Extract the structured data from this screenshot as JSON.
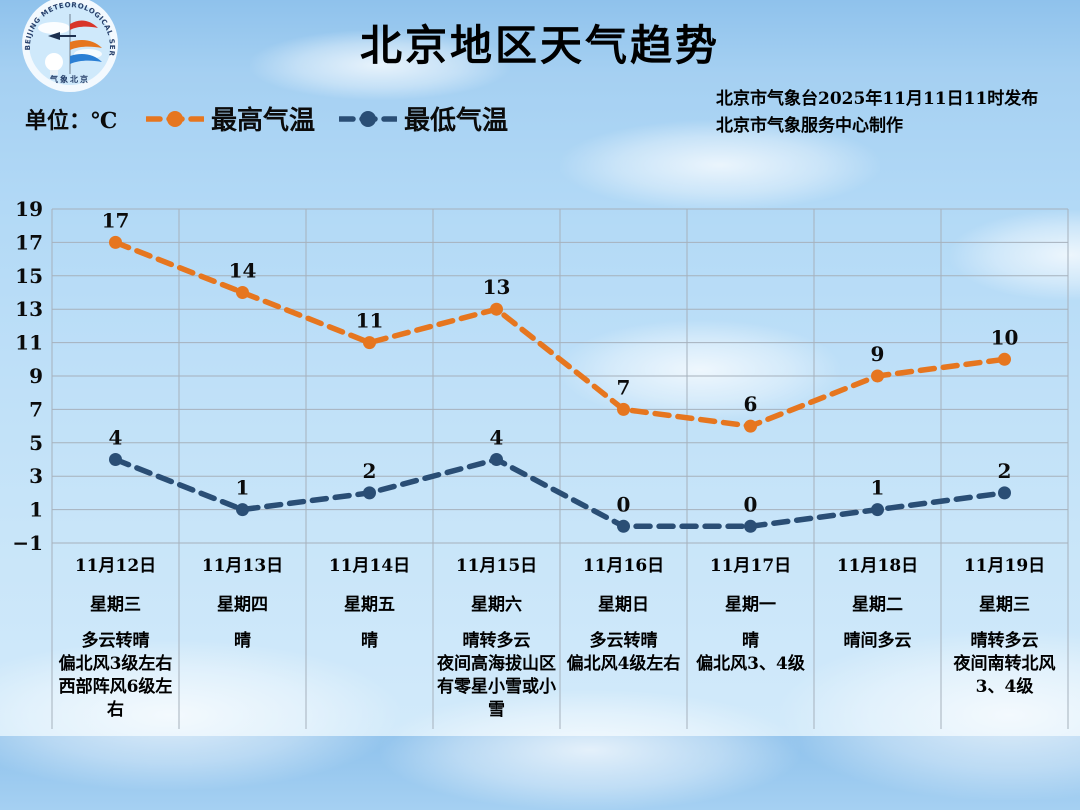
{
  "page": {
    "title": "北京地区天气趋势",
    "unit_label": "单位：℃",
    "source_line1": "北京市气象台2025年11月11日11时发布",
    "source_line2": "北京市气象服务中心制作",
    "logo_text_top": "BEIJING METEOROLOGICAL SERVICE",
    "logo_text_bottom": "气象北京"
  },
  "legend": {
    "max_label": "最高气温",
    "min_label": "最低气温",
    "max_color": "#E6761F",
    "min_color": "#2A4E75"
  },
  "chart_data": {
    "type": "line",
    "line_style": "dashed",
    "grid": true,
    "legend_position": "top-left",
    "ylim": [
      -1,
      19
    ],
    "yticks": [
      19,
      17,
      15,
      13,
      11,
      9,
      7,
      5,
      3,
      1,
      -1
    ],
    "ytick_labels": [
      "19",
      "17",
      "15",
      "13",
      "11",
      "9",
      "7",
      "5",
      "3",
      "1",
      "−1"
    ],
    "categories": [
      "11月12日",
      "11月13日",
      "11月14日",
      "11月15日",
      "11月16日",
      "11月17日",
      "11月18日",
      "11月19日"
    ],
    "weekdays": [
      "星期三",
      "星期四",
      "星期五",
      "星期六",
      "星期日",
      "星期一",
      "星期二",
      "星期三"
    ],
    "weather": [
      [
        "多云转晴",
        "偏北风3级左右 西部阵风6级左右"
      ],
      [
        "晴"
      ],
      [
        "晴"
      ],
      [
        "晴转多云",
        "夜间高海拔山区有零星小雪或小雪"
      ],
      [
        "多云转晴",
        "偏北风4级左右"
      ],
      [
        "晴",
        "偏北风3、4级"
      ],
      [
        "晴间多云"
      ],
      [
        "晴转多云",
        "夜间南转北风3、4级"
      ]
    ],
    "series": [
      {
        "name": "最高气温",
        "color": "#E6761F",
        "values": [
          17,
          14,
          11,
          13,
          7,
          6,
          9,
          10
        ]
      },
      {
        "name": "最低气温",
        "color": "#2A4E75",
        "values": [
          4,
          1,
          2,
          4,
          0,
          0,
          1,
          2
        ]
      }
    ]
  }
}
